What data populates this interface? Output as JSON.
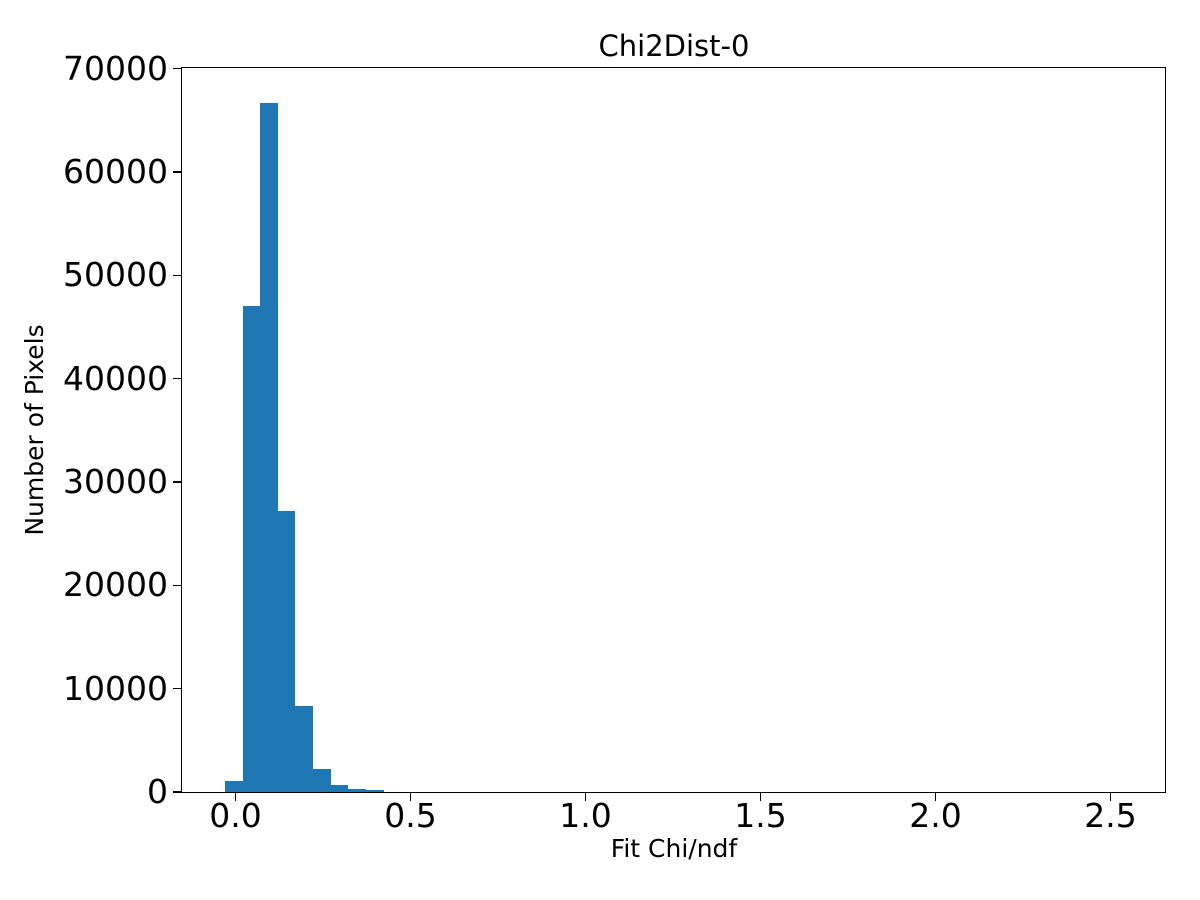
{
  "figure": {
    "title": "Chi2Dist-0",
    "xlabel": "Fit Chi/ndf",
    "ylabel": "Number of Pixels"
  },
  "chart_data": {
    "type": "bar",
    "subtype": "histogram",
    "title": "Chi2Dist-0",
    "xlabel": "Fit Chi/ndf",
    "ylabel": "Number of Pixels",
    "bar_color": "#1f77b4",
    "background_color": "#ffffff",
    "spine_color": "#000000",
    "grid": false,
    "legend": false,
    "xlim": [
      -0.151,
      2.654
    ],
    "ylim": [
      0,
      70000
    ],
    "bin_edges": [
      -0.028,
      0.022,
      0.073,
      0.123,
      0.173,
      0.224,
      0.274,
      0.324,
      0.374,
      0.425
    ],
    "counts": [
      1060,
      47000,
      66700,
      27200,
      8330,
      2270,
      715,
      330,
      165
    ],
    "xticks": {
      "values": [
        0.0,
        0.5,
        1.0,
        1.5,
        2.0,
        2.5
      ],
      "labels": [
        "0.0",
        "0.5",
        "1.0",
        "1.5",
        "2.0",
        "2.5"
      ]
    },
    "yticks": {
      "values": [
        0,
        10000,
        20000,
        30000,
        40000,
        50000,
        60000,
        70000
      ],
      "labels": [
        "0",
        "10000",
        "20000",
        "30000",
        "40000",
        "50000",
        "60000",
        "70000"
      ]
    }
  }
}
